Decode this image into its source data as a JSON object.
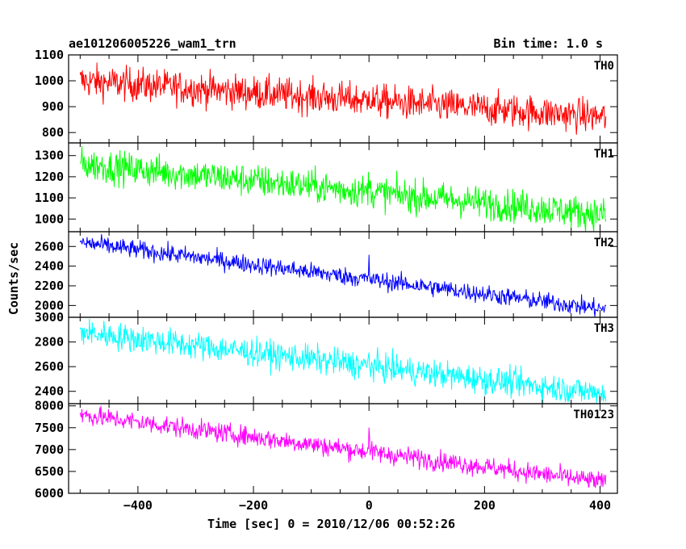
{
  "header": {
    "title": "ae101206005226_wam1_trn",
    "bin_time": "Bin time: 1.0 s"
  },
  "chart_data": {
    "type": "line",
    "xlabel": "Time [sec] 0 = 2010/12/06 00:52:26",
    "ylabel": "Counts/sec",
    "xlim": [
      -520,
      430
    ],
    "x_ticks": [
      -400,
      -200,
      0,
      200,
      400
    ],
    "x_range": [
      -500,
      410
    ],
    "panels": [
      {
        "name": "TH0",
        "color": "#ff0000",
        "ylim": [
          760,
          1100
        ],
        "y_ticks": [
          800,
          900,
          1000,
          1100
        ],
        "start": 1000,
        "end": 860,
        "noise": 32,
        "spike": 85
      },
      {
        "name": "TH1",
        "color": "#00ff00",
        "ylim": [
          940,
          1360
        ],
        "y_ticks": [
          1000,
          1100,
          1200,
          1300
        ],
        "start": 1260,
        "end": 1020,
        "noise": 38,
        "spike": 100
      },
      {
        "name": "TH2",
        "color": "#0000ff",
        "ylim": [
          1880,
          2750
        ],
        "y_ticks": [
          2000,
          2200,
          2400,
          2600
        ],
        "start": 2640,
        "end": 1960,
        "noise": 45,
        "spike": 160
      },
      {
        "name": "TH3",
        "color": "#00ffff",
        "ylim": [
          2300,
          3000
        ],
        "y_ticks": [
          2400,
          2600,
          2800,
          3000
        ],
        "start": 2880,
        "end": 2380,
        "noise": 55,
        "spike": 100
      },
      {
        "name": "TH0123",
        "color": "#ff00ff",
        "ylim": [
          6000,
          8050
        ],
        "y_ticks": [
          6000,
          6500,
          7000,
          7500,
          8000
        ],
        "start": 7800,
        "end": 6250,
        "noise": 110,
        "spike": 700
      }
    ]
  }
}
